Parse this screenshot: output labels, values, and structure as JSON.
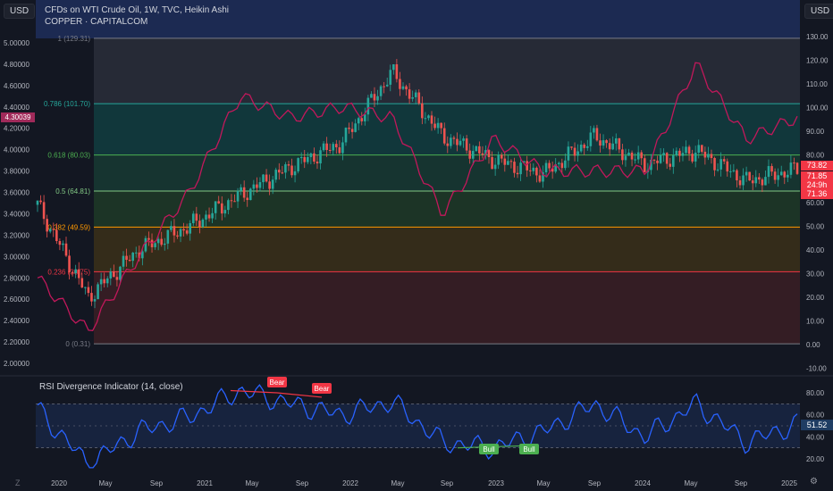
{
  "header": {
    "title": "CFDs on WTI Crude Oil, 1W, TVC, Heikin Ashi",
    "subtitle": "COPPER · CAPITALCOM",
    "currency_left": "USD",
    "currency_right": "USD"
  },
  "left_axis": {
    "ticks": [
      "5.00000",
      "4.80000",
      "4.60000",
      "4.40000",
      "4.20000",
      "4.00000",
      "3.80000",
      "3.60000",
      "3.40000",
      "3.20000",
      "3.00000",
      "2.80000",
      "2.60000",
      "2.40000",
      "2.20000",
      "2.00000"
    ],
    "current_value": "4.30039"
  },
  "right_axis": {
    "ticks": [
      "130.00",
      "120.00",
      "110.00",
      "100.00",
      "90.00",
      "80.00",
      "70.00",
      "60.00",
      "50.00",
      "40.00",
      "30.00",
      "20.00",
      "10.00",
      "0.00",
      "-10.00"
    ],
    "price_tags": [
      "73.82",
      "71.85",
      "24:9h",
      "71.36"
    ]
  },
  "fib_levels": [
    {
      "label": "1 (129.31)",
      "value": 129.31,
      "color": "#787b86"
    },
    {
      "label": "0.786 (101.70)",
      "value": 101.7,
      "color": "#26a69a"
    },
    {
      "label": "0.618 (80.03)",
      "value": 80.03,
      "color": "#4caf50"
    },
    {
      "label": "0.5 (64.81)",
      "value": 64.81,
      "color": "#81c784"
    },
    {
      "label": "0.382 (49.59)",
      "value": 49.59,
      "color": "#ff9800"
    },
    {
      "label": "0.236 (30.75)",
      "value": 30.75,
      "color": "#f23645"
    },
    {
      "label": "0 (0.31)",
      "value": 0.31,
      "color": "#787b86"
    }
  ],
  "rsi_panel": {
    "title": "RSI Divergence Indicator (14, close)",
    "ticks": [
      "80.00",
      "60.00",
      "40.00",
      "20.00"
    ],
    "current_value": "51.52",
    "labels": [
      {
        "text": "Bear",
        "type": "bear"
      },
      {
        "text": "Bear",
        "type": "bear"
      },
      {
        "text": "Bull",
        "type": "bull"
      },
      {
        "text": "Bull",
        "type": "bull"
      }
    ]
  },
  "time_axis": [
    "2020",
    "May",
    "Sep",
    "2021",
    "May",
    "Sep",
    "2022",
    "May",
    "Sep",
    "2023",
    "May",
    "Sep",
    "2024",
    "May",
    "Sep",
    "2025"
  ],
  "colors": {
    "up": "#26a69a",
    "down": "#ef5350",
    "copper_line": "#c2185b",
    "rsi_line": "#2962ff",
    "bear": "#f23645",
    "bull": "#4caf50"
  },
  "chart_data": [
    {
      "type": "line",
      "title": "CFDs on WTI Crude Oil, 1W, TVC, Heikin Ashi",
      "x": [
        "2020",
        "May",
        "Sep",
        "2021",
        "May",
        "Sep",
        "2022",
        "May",
        "Sep",
        "2023",
        "May",
        "Sep",
        "2024",
        "May",
        "Sep",
        "2025"
      ],
      "series": [
        {
          "name": "CFDs on WTI Crude Oil",
          "values": [
            59,
            20,
            40,
            50,
            63,
            75,
            85,
            115,
            88,
            78,
            72,
            88,
            76,
            82,
            69,
            74
          ]
        },
        {
          "name": "COPPER",
          "values": [
            2.8,
            2.3,
            3.0,
            3.6,
            4.5,
            4.3,
            4.4,
            4.3,
            3.4,
            4.1,
            3.8,
            3.8,
            3.8,
            4.8,
            4.1,
            4.3
          ]
        }
      ],
      "ylim": [
        -10,
        130
      ]
    },
    {
      "type": "line",
      "title": "RSI Divergence Indicator (14, close)",
      "x": [
        "2020",
        "May",
        "Sep",
        "2021",
        "May",
        "Sep",
        "2022",
        "May",
        "Sep",
        "2023",
        "May",
        "Sep",
        "2024",
        "May",
        "Sep",
        "2025"
      ],
      "series": [
        {
          "name": "RSI",
          "values": [
            65,
            15,
            45,
            58,
            82,
            70,
            60,
            72,
            35,
            30,
            45,
            70,
            40,
            70,
            35,
            51.52
          ]
        }
      ],
      "ylim": [
        10,
        90
      ]
    }
  ]
}
